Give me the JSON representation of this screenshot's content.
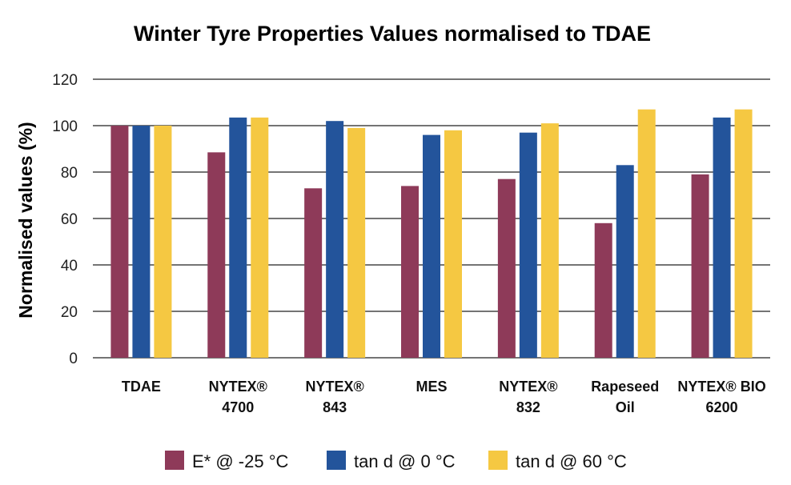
{
  "chart_data": {
    "type": "bar",
    "title": "Winter Tyre Properties Values normalised to TDAE",
    "xlabel": "",
    "ylabel": "Normalised values (%)",
    "ylim": [
      0,
      120
    ],
    "yticks": [
      0,
      20,
      40,
      60,
      80,
      100,
      120
    ],
    "grid": true,
    "legend_position": "bottom",
    "categories": [
      {
        "line1": "TDAE",
        "line2": ""
      },
      {
        "line1": "NYTEX®",
        "line2": "4700"
      },
      {
        "line1": "NYTEX®",
        "line2": "843"
      },
      {
        "line1": "MES",
        "line2": ""
      },
      {
        "line1": "NYTEX®",
        "line2": "832"
      },
      {
        "line1": "Rapeseed",
        "line2": "Oil"
      },
      {
        "line1": "NYTEX® BIO",
        "line2": "6200"
      }
    ],
    "series": [
      {
        "name": "E* @ -25 °C",
        "color": "#8e3a59",
        "values": [
          100,
          88.5,
          73,
          74,
          77,
          58,
          79
        ]
      },
      {
        "name": "tan d @ 0 °C",
        "color": "#23549b",
        "values": [
          100,
          103.5,
          102,
          96,
          97,
          83,
          103.5
        ]
      },
      {
        "name": "tan d @ 60 °C",
        "color": "#f5c842",
        "values": [
          100,
          103.5,
          99,
          98,
          101,
          107,
          107
        ]
      }
    ]
  }
}
